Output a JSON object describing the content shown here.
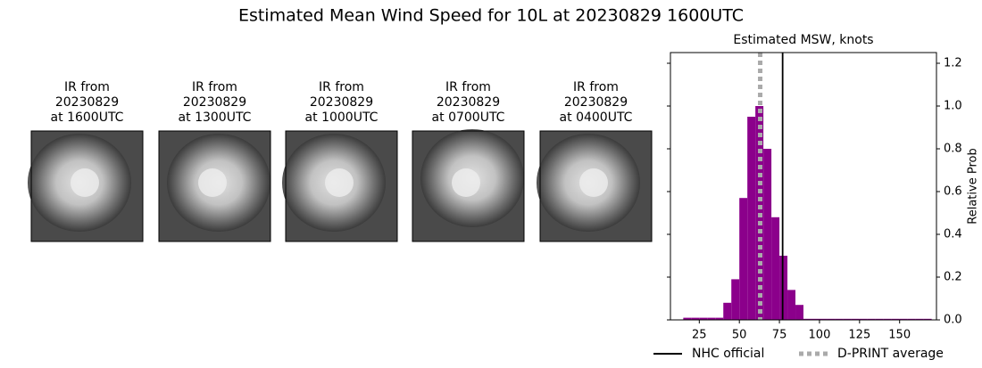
{
  "title": "Estimated Mean Wind Speed for 10L at 20230829 1600UTC",
  "panels": [
    {
      "lines": [
        "IR from",
        "20230829",
        "at 1600UTC"
      ]
    },
    {
      "lines": [
        "IR from",
        "20230829",
        "at 1300UTC"
      ]
    },
    {
      "lines": [
        "IR from",
        "20230829",
        "at 1000UTC"
      ]
    },
    {
      "lines": [
        "IR from",
        "20230829",
        "at 0700UTC"
      ]
    },
    {
      "lines": [
        "IR from",
        "20230829",
        "at 0400UTC"
      ]
    }
  ],
  "chart_data": {
    "type": "histogram",
    "title": "Estimated MSW, knots",
    "ylabel": "Relative Prob",
    "bins": [
      15,
      20,
      25,
      30,
      35,
      40,
      45,
      50,
      55,
      60,
      65,
      70,
      75,
      80,
      85,
      90,
      95,
      100,
      105,
      110,
      115,
      120,
      125,
      130,
      135,
      140,
      145,
      150,
      155,
      160,
      165,
      170
    ],
    "values": [
      0.01,
      0.01,
      0.01,
      0.01,
      0.01,
      0.08,
      0.19,
      0.57,
      0.95,
      1.0,
      0.8,
      0.48,
      0.3,
      0.14,
      0.07,
      0.005,
      0.005,
      0.005,
      0.005,
      0.005,
      0.005,
      0.005,
      0.005,
      0.005,
      0.005,
      0.005,
      0.005,
      0.005,
      0.005,
      0.005,
      0.005
    ],
    "color": "#8b008b",
    "xlim": [
      7,
      173
    ],
    "ylim": [
      0,
      1.25
    ],
    "xticks": [
      25,
      50,
      75,
      100,
      125,
      150
    ],
    "yticks": [
      {
        "value": 0,
        "label": "0.0"
      },
      0.2,
      0.4,
      0.6,
      0.8,
      {
        "value": 1,
        "label": "1.0"
      },
      1.2
    ],
    "lines": [
      {
        "name": "NHC official",
        "value": 77,
        "color": "#000000",
        "style": "solid"
      },
      {
        "name": "D-PRINT average",
        "value": 63,
        "color": "#aaaaaa",
        "style": "dotted"
      }
    ]
  }
}
